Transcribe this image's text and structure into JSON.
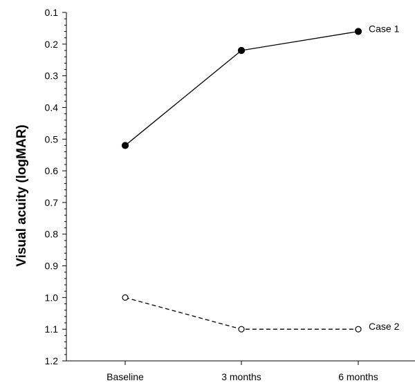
{
  "chart_data": {
    "type": "line",
    "title": "",
    "xlabel": "",
    "ylabel": "Visual acuity (logMAR)",
    "categories": [
      "Baseline",
      "3 months",
      "6 months"
    ],
    "ylim": [
      0.1,
      1.2
    ],
    "y_inverted": true,
    "y_ticks": [
      "0.1",
      "0.2",
      "0.3",
      "0.4",
      "0.5",
      "0.6",
      "0.7",
      "0.8",
      "0.9",
      "1.0",
      "1.1",
      "1.2"
    ],
    "grid": false,
    "series": [
      {
        "name": "Case 1",
        "values": [
          0.52,
          0.22,
          0.16
        ],
        "marker": "filled-circle",
        "line": "solid",
        "color": "#000000"
      },
      {
        "name": "Case 2",
        "values": [
          1.0,
          1.1,
          1.1
        ],
        "marker": "open-circle",
        "line": "dashed",
        "color": "#000000"
      }
    ]
  }
}
